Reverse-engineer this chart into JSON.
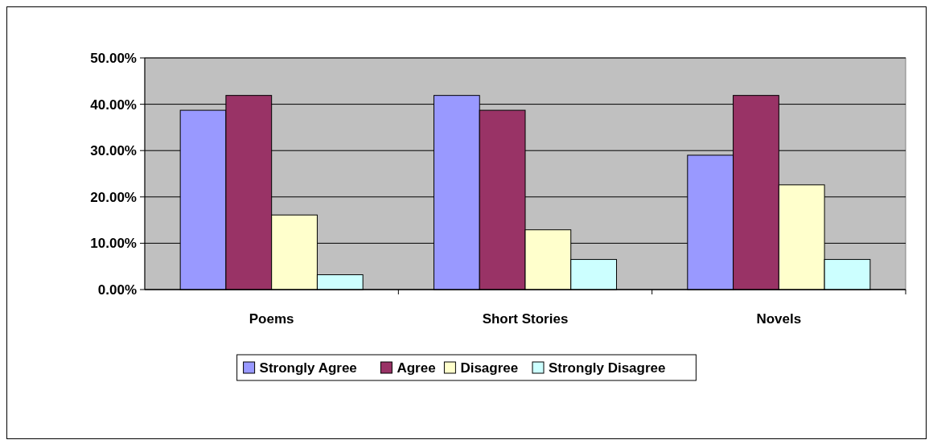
{
  "chart_data": {
    "type": "bar",
    "categories": [
      "Poems",
      "Short Stories",
      "Novels"
    ],
    "series": [
      {
        "name": "Strongly Agree",
        "color": "#9999ff",
        "values": [
          38.7,
          41.9,
          29.0
        ]
      },
      {
        "name": "Agree",
        "color": "#993366",
        "values": [
          41.9,
          38.7,
          41.9
        ]
      },
      {
        "name": "Disagree",
        "color": "#ffffcc",
        "values": [
          16.1,
          12.9,
          22.6
        ]
      },
      {
        "name": "Strongly Disagree",
        "color": "#ccffff",
        "values": [
          3.2,
          6.5,
          6.5
        ]
      }
    ],
    "ylim": [
      0,
      50
    ],
    "yticks": [
      {
        "value": 0,
        "label": "0.00%"
      },
      {
        "value": 10,
        "label": "10.00%"
      },
      {
        "value": 20,
        "label": "20.00%"
      },
      {
        "value": 30,
        "label": "30.00%"
      },
      {
        "value": 40,
        "label": "40.00%"
      },
      {
        "value": 50,
        "label": "50.00%"
      }
    ],
    "grid": "y",
    "legend": "bottom"
  }
}
